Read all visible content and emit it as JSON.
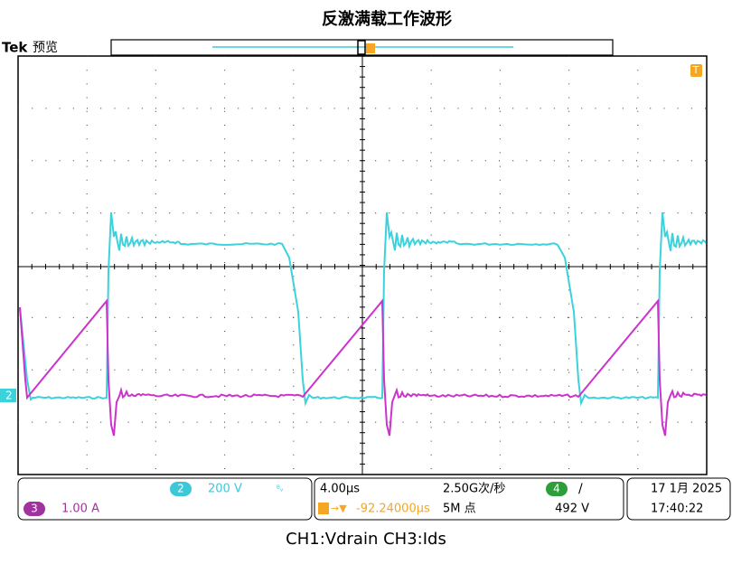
{
  "header": {
    "title": "反激满载工作波形",
    "brand": "Tek",
    "mode": "预览"
  },
  "screen": {
    "ch2_marker": "2",
    "trigger_marker": "T"
  },
  "status": {
    "ch2": {
      "badge": "2",
      "scale": "200 V"
    },
    "ch3": {
      "badge": "3",
      "scale": "1.00 A"
    },
    "time_scale": "4.00µs",
    "sample_rate": "2.50G次/秒",
    "trigger_position": "-92.24000µs",
    "record_length": "5M 点",
    "trigger": {
      "badge": "4",
      "slope": "/",
      "level": "492 V"
    },
    "date": "17 1月 2025",
    "time": "17:40:22"
  },
  "caption": "CH1:Vdrain  CH3:Ids"
}
